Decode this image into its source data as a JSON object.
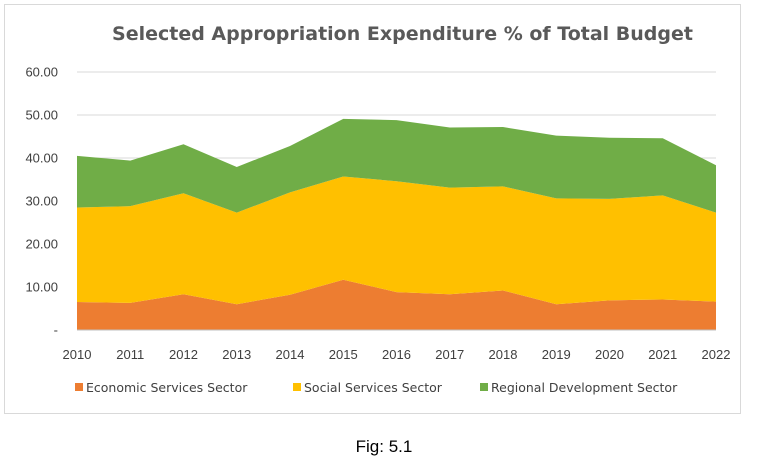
{
  "chart_data": {
    "type": "area",
    "stacked": true,
    "title": "Selected Appropriation Expenditure % of Total Budget",
    "x": [
      "2010",
      "2011",
      "2012",
      "2013",
      "2014",
      "2015",
      "2016",
      "2017",
      "2018",
      "2019",
      "2020",
      "2021",
      "2022"
    ],
    "y_ticks": [
      "-",
      "10.00",
      "20.00",
      "30.00",
      "40.00",
      "50.00",
      "60.00"
    ],
    "ylim": [
      0,
      60
    ],
    "grid": true,
    "legend_position": "bottom",
    "series": [
      {
        "name": "Economic Services Sector",
        "color": "#ed7d31",
        "values": [
          6.5,
          6.3,
          8.3,
          6.0,
          8.2,
          11.7,
          8.8,
          8.3,
          9.2,
          6.0,
          6.9,
          7.1,
          6.6
        ]
      },
      {
        "name": "Social Services Sector",
        "color": "#ffc000",
        "values": [
          22.0,
          22.5,
          23.5,
          21.3,
          23.8,
          24.0,
          25.8,
          24.8,
          24.2,
          24.6,
          23.6,
          24.2,
          20.7
        ]
      },
      {
        "name": "Regional Development Sector",
        "color": "#70ad47",
        "values": [
          12.0,
          10.6,
          11.4,
          10.6,
          10.8,
          13.4,
          14.2,
          14.0,
          13.8,
          14.6,
          14.2,
          13.3,
          11.0
        ]
      }
    ]
  },
  "caption": "Fig: 5.1"
}
